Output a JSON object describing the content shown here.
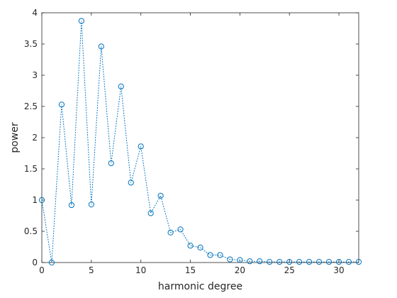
{
  "chart_data": {
    "type": "line",
    "title": "",
    "xlabel": "harmonic degree",
    "ylabel": "power",
    "xlim": [
      0,
      32
    ],
    "ylim": [
      0,
      4
    ],
    "xticks": [
      0,
      5,
      10,
      15,
      20,
      25,
      30
    ],
    "yticks": [
      0,
      0.5,
      1,
      1.5,
      2,
      2.5,
      3,
      3.5,
      4
    ],
    "grid": false,
    "line_style": "dotted",
    "marker": "circle",
    "color": "#0072BD",
    "series": [
      {
        "x": [
          0,
          1,
          2,
          3,
          4,
          5,
          6,
          7,
          8,
          9,
          10,
          11,
          12,
          13,
          14,
          15,
          16,
          17,
          18,
          19,
          20,
          21,
          22,
          23,
          24,
          25,
          26,
          27,
          28,
          29,
          30,
          31,
          32
        ],
        "values": [
          1.0,
          0.0,
          2.53,
          0.92,
          3.87,
          0.93,
          3.46,
          1.59,
          2.82,
          1.28,
          1.86,
          0.79,
          1.07,
          0.48,
          0.53,
          0.27,
          0.24,
          0.12,
          0.12,
          0.05,
          0.04,
          0.02,
          0.02,
          0.01,
          0.01,
          0.01,
          0.01,
          0.01,
          0.01,
          0.01,
          0.01,
          0.01,
          0.01
        ]
      }
    ]
  }
}
